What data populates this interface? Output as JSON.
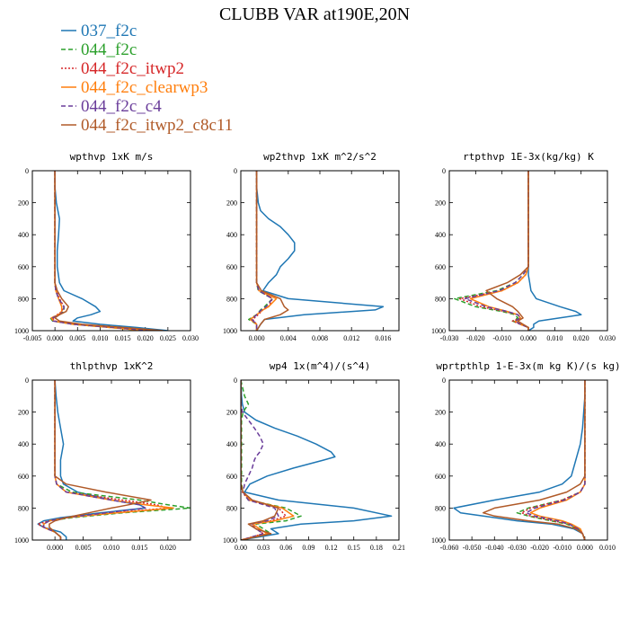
{
  "title": "CLUBB VAR at190E,20N",
  "legend": [
    {
      "name": "037_f2c",
      "color": "#1f77b4",
      "dash": "solid"
    },
    {
      "name": "044_f2c",
      "color": "#2ca02c",
      "dash": "dashed"
    },
    {
      "name": "044_f2c_itwp2",
      "color": "#d62728",
      "dash": "dotted"
    },
    {
      "name": "044_f2c_clearwp3",
      "color": "#ff7f0e",
      "dash": "solid"
    },
    {
      "name": "044_f2c_c4",
      "color": "#6a3d9a",
      "dash": "dashed"
    },
    {
      "name": "044_f2c_itwp2_c8c11",
      "color": "#b05a28",
      "dash": "solid"
    }
  ],
  "chart_data": [
    {
      "type": "line",
      "title": "wpthvp  1xK m/s",
      "xlim": [
        -0.005,
        0.03
      ],
      "xticks": [
        "-0.005",
        "0.000",
        "0.005",
        "0.010",
        "0.015",
        "0.020",
        "0.025",
        "0.030"
      ],
      "ylim": [
        0,
        1000
      ],
      "y_inverted": true,
      "yticks": [
        "0",
        "200",
        "400",
        "600",
        "800",
        "1000"
      ],
      "y": [
        0,
        100,
        200,
        300,
        400,
        500,
        600,
        700,
        750,
        800,
        850,
        880,
        900,
        920,
        940,
        960,
        980,
        1000
      ],
      "series": [
        {
          "values": [
            0,
            0,
            0.0003,
            0.001,
            0.0008,
            0.0005,
            0.0005,
            0.001,
            0.002,
            0.006,
            0.009,
            0.01,
            0.008,
            0.005,
            0.004,
            0.01,
            0.018,
            0.025
          ]
        },
        {
          "values": [
            0,
            0,
            0,
            0,
            0,
            0,
            0,
            0,
            0.0002,
            0.0008,
            0.002,
            0.002,
            0.001,
            -0.001,
            -0.0005,
            0.004,
            0.012,
            0.02
          ]
        },
        {
          "values": [
            0,
            0,
            0,
            0,
            0,
            0,
            0,
            0,
            0.0003,
            0.001,
            0.002,
            0.0015,
            0.0005,
            -0.0005,
            0,
            0.005,
            0.014,
            0.022
          ]
        },
        {
          "values": [
            0,
            0,
            0,
            0,
            0,
            0,
            0,
            0,
            0.0002,
            0.0008,
            0.0015,
            0.0015,
            0.0008,
            -0.0008,
            -0.0003,
            0.004,
            0.012,
            0.02
          ]
        },
        {
          "values": [
            0,
            0,
            0,
            0,
            0,
            0,
            0,
            0,
            0.0002,
            0.0008,
            0.002,
            0.0018,
            0.001,
            -0.0005,
            -0.0004,
            0.004,
            0.013,
            0.021
          ]
        },
        {
          "values": [
            0,
            0,
            0,
            0,
            0,
            0,
            0,
            0,
            0.0005,
            0.0015,
            0.003,
            0.0025,
            0.001,
            0,
            0.001,
            0.006,
            0.015,
            0.024
          ]
        }
      ]
    },
    {
      "type": "line",
      "title": "wp2thvp  1xK m^2/s^2",
      "xlim": [
        -0.002,
        0.018
      ],
      "xticks": [
        "0.000",
        "0.004",
        "0.008",
        "0.012",
        "0.016"
      ],
      "ylim": [
        0,
        1000
      ],
      "y_inverted": true,
      "yticks": [
        "0",
        "200",
        "400",
        "600",
        "800",
        "1000"
      ],
      "y": [
        0,
        100,
        200,
        250,
        300,
        350,
        400,
        450,
        500,
        550,
        600,
        650,
        700,
        750,
        800,
        850,
        870,
        900,
        930,
        960,
        1000
      ],
      "series": [
        {
          "values": [
            0,
            0,
            0.0002,
            0.0005,
            0.0015,
            0.003,
            0.004,
            0.0048,
            0.0048,
            0.004,
            0.003,
            0.0025,
            0.0015,
            0.0008,
            0.004,
            0.016,
            0.015,
            0.006,
            0.001,
            0.0005,
            0
          ]
        },
        {
          "values": [
            0,
            0,
            0,
            0,
            0,
            0,
            0,
            0,
            0,
            0,
            0,
            0,
            0,
            0.0002,
            0.002,
            0.001,
            0.0005,
            0,
            -0.001,
            0,
            0
          ]
        },
        {
          "values": [
            0,
            0,
            0,
            0,
            0,
            0,
            0,
            0,
            0,
            0,
            0,
            0,
            0,
            0.0003,
            0.002,
            0.0015,
            0.0008,
            0.0002,
            -0.0005,
            0,
            0
          ]
        },
        {
          "values": [
            0,
            0,
            0,
            0,
            0,
            0,
            0,
            0,
            0,
            0,
            0,
            0,
            0,
            0.0003,
            0.0025,
            0.0015,
            0.0008,
            0,
            -0.0008,
            0,
            0
          ]
        },
        {
          "values": [
            0,
            0,
            0,
            0,
            0,
            0,
            0,
            0,
            0,
            0,
            0,
            0,
            0,
            0.0003,
            0.002,
            0.0012,
            0.0006,
            0,
            -0.0006,
            0,
            0
          ]
        },
        {
          "values": [
            0,
            0,
            0,
            0,
            0,
            0,
            0,
            0,
            0,
            0,
            0,
            0,
            0,
            0.0006,
            0.003,
            0.0035,
            0.004,
            0.003,
            0.001,
            0.0005,
            0
          ]
        }
      ]
    },
    {
      "type": "line",
      "title": "rtpthvp  1E-3x(kg/kg) K",
      "xlim": [
        -0.03,
        0.03
      ],
      "xticks": [
        "-0.030",
        "-0.020",
        "-0.010",
        "0.000",
        "0.010",
        "0.020",
        "0.030"
      ],
      "ylim": [
        0,
        1000
      ],
      "y_inverted": true,
      "yticks": [
        "0",
        "200",
        "400",
        "600",
        "800",
        "1000"
      ],
      "y": [
        0,
        100,
        200,
        300,
        400,
        500,
        600,
        650,
        700,
        750,
        800,
        850,
        880,
        900,
        920,
        940,
        960,
        980,
        1000
      ],
      "series": [
        {
          "values": [
            0,
            0,
            0,
            0,
            0,
            0,
            0,
            0,
            0.0005,
            0.001,
            0.003,
            0.012,
            0.018,
            0.02,
            0.012,
            0.004,
            0.002,
            0.002,
            0
          ]
        },
        {
          "values": [
            0,
            0,
            0,
            0,
            0,
            0,
            0,
            -0.002,
            -0.005,
            -0.012,
            -0.028,
            -0.02,
            -0.01,
            -0.005,
            -0.004,
            -0.006,
            -0.003,
            0,
            0
          ]
        },
        {
          "values": [
            0,
            0,
            0,
            0,
            0,
            0,
            0,
            -0.001,
            -0.004,
            -0.01,
            -0.026,
            -0.018,
            -0.009,
            -0.004,
            -0.003,
            -0.006,
            -0.003,
            0,
            0
          ]
        },
        {
          "values": [
            0,
            0,
            0,
            0,
            0,
            0,
            0,
            -0.001,
            -0.004,
            -0.01,
            -0.022,
            -0.015,
            -0.008,
            -0.004,
            -0.003,
            -0.005,
            -0.003,
            0,
            0
          ]
        },
        {
          "values": [
            0,
            0,
            0,
            0,
            0,
            0,
            0,
            -0.002,
            -0.005,
            -0.011,
            -0.024,
            -0.016,
            -0.008,
            -0.004,
            -0.003,
            -0.005,
            -0.003,
            0,
            0
          ]
        },
        {
          "values": [
            0,
            0,
            0,
            0,
            0,
            0,
            0,
            -0.003,
            -0.008,
            -0.016,
            -0.012,
            -0.006,
            -0.004,
            -0.003,
            -0.002,
            -0.004,
            -0.002,
            0,
            0
          ]
        }
      ]
    },
    {
      "type": "line",
      "title": "thlpthvp  1xK^2",
      "xlim": [
        -0.004,
        0.024
      ],
      "xticks": [
        "0.000",
        "0.005",
        "0.010",
        "0.015",
        "0.020"
      ],
      "ylim": [
        0,
        1000
      ],
      "y_inverted": true,
      "yticks": [
        "0",
        "200",
        "400",
        "600",
        "800",
        "1000"
      ],
      "y": [
        0,
        100,
        200,
        300,
        400,
        500,
        600,
        650,
        700,
        750,
        780,
        800,
        830,
        860,
        880,
        900,
        920,
        950,
        980,
        1000
      ],
      "series": [
        {
          "values": [
            0,
            0.0002,
            0.0005,
            0.001,
            0.0015,
            0.001,
            0.001,
            0.0015,
            0.004,
            0.01,
            0.015,
            0.016,
            0.008,
            0.001,
            -0.002,
            -0.003,
            -0.002,
            0.001,
            0.002,
            0.002
          ]
        },
        {
          "values": [
            0,
            0,
            0,
            0,
            0,
            0,
            0,
            0.0003,
            0.003,
            0.015,
            0.02,
            0.024,
            0.012,
            0.003,
            -0.001,
            -0.002,
            -0.002,
            0,
            0.001,
            0.001
          ]
        },
        {
          "values": [
            0,
            0,
            0,
            0,
            0,
            0,
            0,
            0.0003,
            0.002,
            0.012,
            0.018,
            0.02,
            0.01,
            0.002,
            -0.001,
            -0.003,
            -0.002,
            0,
            0.001,
            0.001
          ]
        },
        {
          "values": [
            0,
            0,
            0,
            0,
            0,
            0,
            0,
            0.0003,
            0.002,
            0.01,
            0.016,
            0.021,
            0.011,
            0.002,
            -0.001,
            -0.002,
            -0.002,
            0,
            0.001,
            0.001
          ]
        },
        {
          "values": [
            0,
            0,
            0,
            0,
            0,
            0,
            0,
            0.0003,
            0.002,
            0.01,
            0.015,
            0.016,
            0.009,
            0.002,
            -0.001,
            -0.002,
            -0.002,
            0,
            0.001,
            0.001
          ]
        },
        {
          "values": [
            0,
            0,
            0,
            0,
            0,
            0,
            0,
            0.002,
            0.009,
            0.017,
            0.013,
            0.01,
            0.006,
            0.002,
            0,
            -0.001,
            -0.001,
            0,
            0.001,
            0.001
          ]
        }
      ]
    },
    {
      "type": "line",
      "title": "wp4  1x(m^4)/(s^4)",
      "xlim": [
        0,
        0.21
      ],
      "xticks": [
        "0.00",
        "0.03",
        "0.06",
        "0.09",
        "0.12",
        "0.15",
        "0.18",
        "0.21"
      ],
      "ylim": [
        0,
        1000
      ],
      "y_inverted": true,
      "yticks": [
        "0",
        "200",
        "400",
        "600",
        "800",
        "1000"
      ],
      "y": [
        0,
        100,
        150,
        200,
        250,
        300,
        350,
        400,
        450,
        480,
        500,
        550,
        600,
        650,
        700,
        750,
        800,
        850,
        880,
        900,
        930,
        960,
        1000
      ],
      "series": [
        {
          "values": [
            0,
            0.001,
            0.002,
            0.005,
            0.02,
            0.045,
            0.075,
            0.1,
            0.12,
            0.125,
            0.11,
            0.07,
            0.035,
            0.012,
            0.005,
            0.05,
            0.15,
            0.2,
            0.15,
            0.08,
            0.04,
            0.05,
            0
          ]
        },
        {
          "values": [
            0,
            0.005,
            0.01,
            0.003,
            0.001,
            0.001,
            0.001,
            0.001,
            0.001,
            0.001,
            0.001,
            0.001,
            0.001,
            0.001,
            0.003,
            0.01,
            0.06,
            0.08,
            0.06,
            0.02,
            0.03,
            0.04,
            0
          ]
        },
        {
          "values": [
            0,
            0,
            0,
            0,
            0,
            0,
            0,
            0,
            0,
            0,
            0,
            0,
            0,
            0,
            0.002,
            0.01,
            0.05,
            0.06,
            0.04,
            0.015,
            0.02,
            0.03,
            0
          ]
        },
        {
          "values": [
            0,
            0,
            0,
            0,
            0,
            0,
            0,
            0,
            0,
            0,
            0,
            0,
            0,
            0,
            0.003,
            0.012,
            0.055,
            0.07,
            0.045,
            0.015,
            0.025,
            0.035,
            0
          ]
        },
        {
          "values": [
            0,
            0,
            0,
            0.002,
            0.01,
            0.018,
            0.025,
            0.03,
            0.025,
            0.02,
            0.018,
            0.015,
            0.01,
            0.005,
            0.003,
            0.01,
            0.045,
            0.05,
            0.035,
            0.012,
            0.02,
            0.03,
            0
          ]
        },
        {
          "values": [
            0,
            0,
            0,
            0,
            0,
            0,
            0,
            0,
            0,
            0,
            0,
            0,
            0,
            0,
            0.003,
            0.015,
            0.05,
            0.045,
            0.03,
            0.01,
            0.02,
            0.04,
            0
          ]
        }
      ]
    },
    {
      "type": "line",
      "title": "wprtpthlp  1-E-3x(m kg K)/(s kg)",
      "xlim": [
        -0.06,
        0.01
      ],
      "xticks": [
        "-0.060",
        "-0.050",
        "-0.040",
        "-0.030",
        "-0.020",
        "-0.010",
        "0.000",
        "0.010"
      ],
      "ylim": [
        0,
        1000
      ],
      "y_inverted": true,
      "yticks": [
        "0",
        "200",
        "400",
        "600",
        "800",
        "1000"
      ],
      "y": [
        0,
        100,
        200,
        300,
        400,
        500,
        600,
        650,
        700,
        750,
        800,
        830,
        850,
        880,
        900,
        930,
        960,
        1000
      ],
      "series": [
        {
          "values": [
            0,
            0,
            -0.0005,
            -0.001,
            -0.002,
            -0.004,
            -0.006,
            -0.01,
            -0.02,
            -0.04,
            -0.058,
            -0.055,
            -0.045,
            -0.03,
            -0.015,
            -0.005,
            -0.001,
            0
          ]
        },
        {
          "values": [
            0,
            0,
            0,
            0,
            0,
            0,
            0,
            0,
            -0.002,
            -0.01,
            -0.025,
            -0.03,
            -0.025,
            -0.015,
            -0.008,
            -0.003,
            -0.001,
            0
          ]
        },
        {
          "values": [
            0,
            0,
            0,
            0,
            0,
            0,
            0,
            0,
            -0.002,
            -0.01,
            -0.024,
            -0.028,
            -0.024,
            -0.014,
            -0.007,
            -0.003,
            -0.001,
            0
          ]
        },
        {
          "values": [
            0,
            0,
            0,
            0,
            0,
            0,
            0,
            0,
            -0.002,
            -0.008,
            -0.02,
            -0.024,
            -0.02,
            -0.01,
            -0.006,
            -0.002,
            -0.001,
            0
          ]
        },
        {
          "values": [
            0,
            0,
            0,
            0,
            0,
            0,
            0,
            0,
            -0.002,
            -0.009,
            -0.022,
            -0.026,
            -0.022,
            -0.012,
            -0.007,
            -0.003,
            -0.001,
            0
          ]
        },
        {
          "values": [
            0,
            0,
            0,
            0,
            0,
            0,
            0,
            -0.002,
            -0.008,
            -0.02,
            -0.04,
            -0.045,
            -0.04,
            -0.025,
            -0.012,
            -0.004,
            -0.001,
            0
          ]
        }
      ]
    }
  ]
}
